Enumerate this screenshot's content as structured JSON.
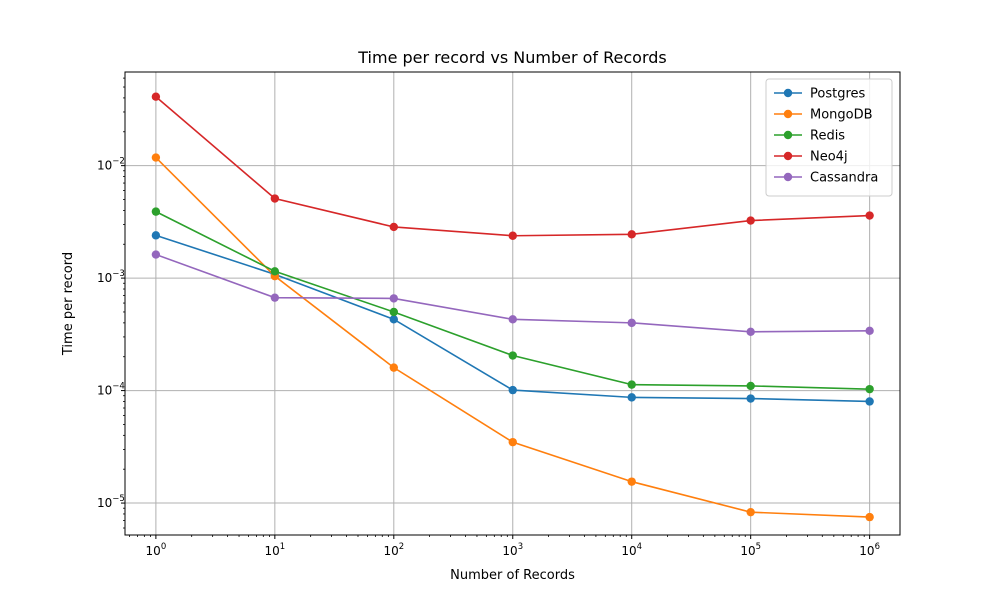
{
  "chart_data": {
    "type": "line",
    "title": "Time per record vs Number of Records",
    "xlabel": "Number of Records",
    "ylabel": "Time per record",
    "xscale": "log",
    "yscale": "log",
    "x": [
      1,
      10,
      100,
      1000,
      10000,
      100000,
      1000000
    ],
    "xlim": [
      0.55,
      1800000
    ],
    "ylim": [
      5.2e-06,
      0.068
    ],
    "grid": true,
    "legend_position": "top-right",
    "x_ticks": [
      {
        "value": 1,
        "base": "10",
        "exp": "0"
      },
      {
        "value": 10,
        "base": "10",
        "exp": "1"
      },
      {
        "value": 100,
        "base": "10",
        "exp": "2"
      },
      {
        "value": 1000,
        "base": "10",
        "exp": "3"
      },
      {
        "value": 10000,
        "base": "10",
        "exp": "4"
      },
      {
        "value": 100000,
        "base": "10",
        "exp": "5"
      },
      {
        "value": 1000000,
        "base": "10",
        "exp": "6"
      }
    ],
    "y_ticks": [
      {
        "value": 1e-05,
        "base": "10",
        "exp": "−5"
      },
      {
        "value": 0.0001,
        "base": "10",
        "exp": "−4"
      },
      {
        "value": 0.001,
        "base": "10",
        "exp": "−3"
      },
      {
        "value": 0.01,
        "base": "10",
        "exp": "−2"
      }
    ],
    "series": [
      {
        "name": "Postgres",
        "color": "#1f77b4",
        "values": [
          0.0024,
          0.00108,
          0.00043,
          0.000101,
          8.7e-05,
          8.5e-05,
          8e-05
        ]
      },
      {
        "name": "MongoDB",
        "color": "#ff7f0e",
        "values": [
          0.0118,
          0.00104,
          0.00016,
          3.48e-05,
          1.55e-05,
          8.3e-06,
          7.5e-06
        ]
      },
      {
        "name": "Redis",
        "color": "#2ca02c",
        "values": [
          0.0039,
          0.00115,
          0.0005,
          0.000205,
          0.000113,
          0.00011,
          0.000103
        ]
      },
      {
        "name": "Neo4j",
        "color": "#d62728",
        "values": [
          0.041,
          0.0051,
          0.00285,
          0.00238,
          0.00245,
          0.00325,
          0.0036
        ]
      },
      {
        "name": "Cassandra",
        "color": "#9467bd",
        "values": [
          0.00162,
          0.00067,
          0.00066,
          0.00043,
          0.0004,
          0.000333,
          0.00034
        ]
      }
    ]
  }
}
